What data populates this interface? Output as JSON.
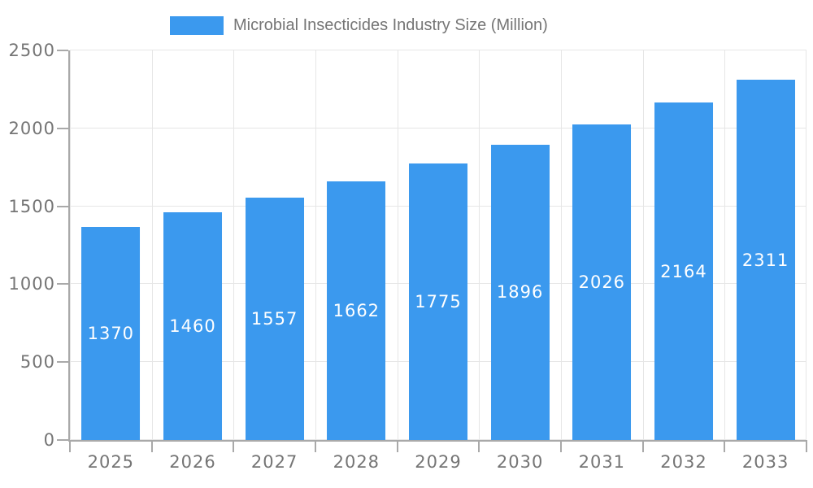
{
  "legend": {
    "label": "Microbial Insecticides Industry Size (Million)"
  },
  "colors": {
    "bar": "#3B99EE",
    "grid": "#E6E6E6",
    "axis": "#A9A9A9",
    "text": "#757575",
    "bar_label_text": "#FFFFFF",
    "background": "#FFFFFF"
  },
  "chart_data": {
    "type": "bar",
    "title": "Microbial Insecticides Industry Size (Million)",
    "categories": [
      "2025",
      "2026",
      "2027",
      "2028",
      "2029",
      "2030",
      "2031",
      "2032",
      "2033"
    ],
    "values": [
      1370,
      1460,
      1557,
      1662,
      1775,
      1896,
      2026,
      2164,
      2311
    ],
    "xlabel": "",
    "ylabel": "",
    "ylim": [
      0,
      2500
    ],
    "y_ticks": [
      0,
      500,
      1000,
      1500,
      2000,
      2500
    ],
    "grid": true,
    "legend_position": "top",
    "bar_width_fraction": 0.715,
    "value_labels": "inside-center"
  }
}
